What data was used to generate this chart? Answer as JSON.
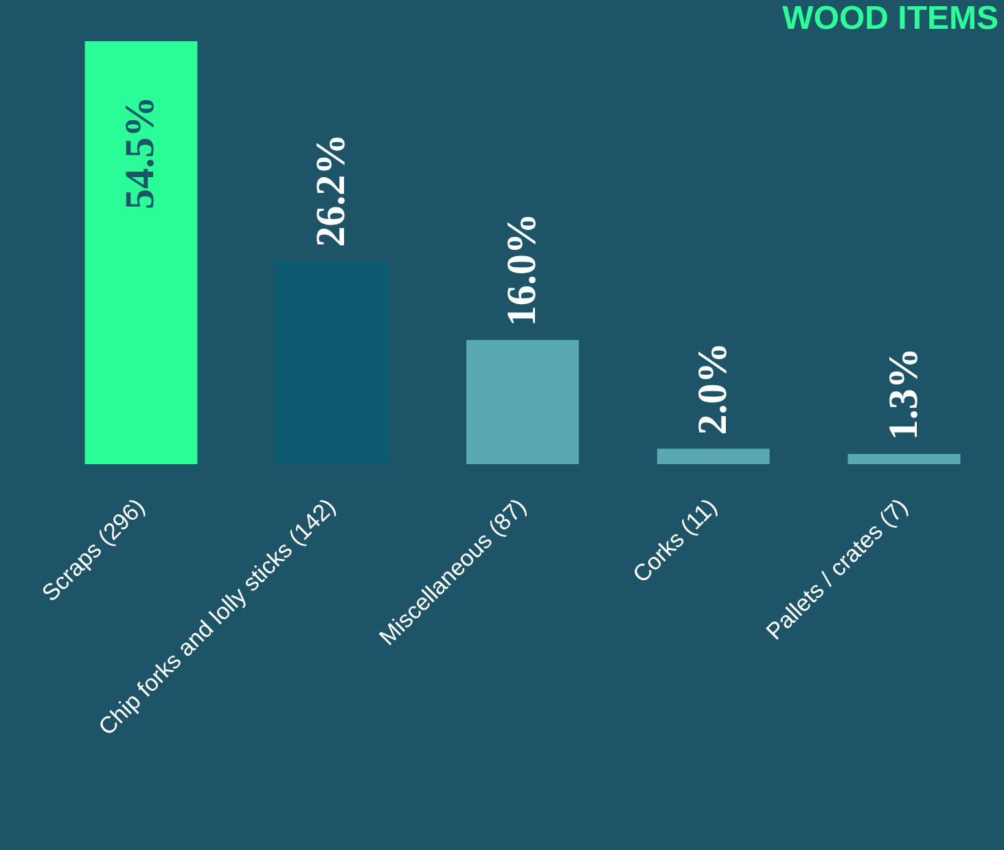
{
  "chart_data": {
    "type": "bar",
    "title": "WOOD ITEMS",
    "categories": [
      "Scraps (296)",
      "Chip forks and lolly sticks (142)",
      "Miscellaneous (87)",
      "Corks (11)",
      "Pallets / crates (7)"
    ],
    "values": [
      54.5,
      26.2,
      16.0,
      2.0,
      1.3
    ],
    "value_labels": [
      "54.5%",
      "26.2%",
      "16.0%",
      "2.0%",
      "1.3%"
    ],
    "colors": [
      "#2afc98",
      "#0b5a70",
      "#5aa8b0",
      "#5aa8b0",
      "#5aa8b0"
    ]
  }
}
